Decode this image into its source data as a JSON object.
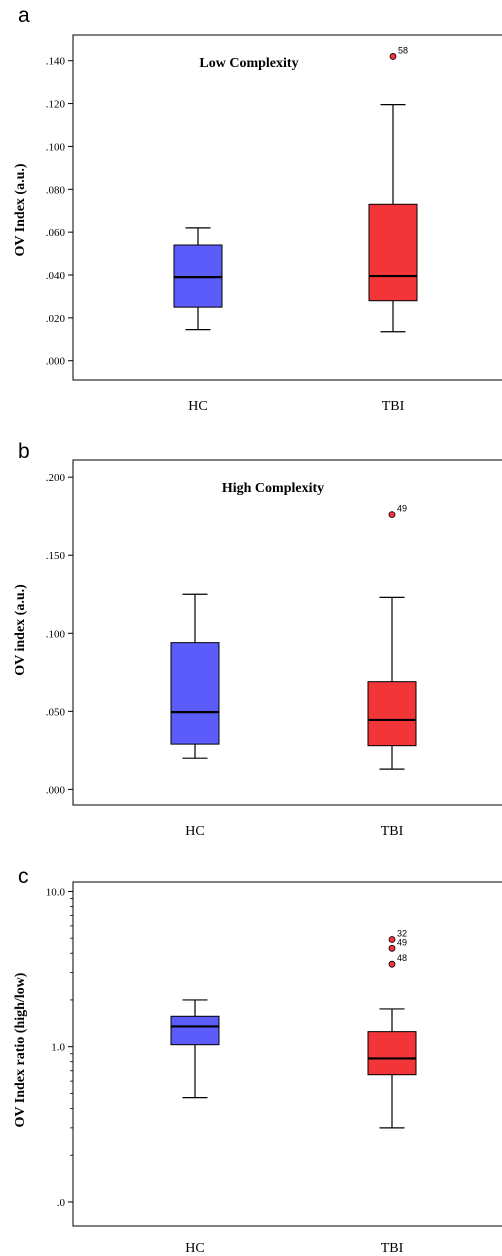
{
  "chart_data": [
    {
      "panel": "a",
      "type": "box",
      "title": "Low Complexity",
      "ylabel": "OV Index (a.u.)",
      "scale": "linear",
      "ylim": [
        -0.009,
        0.152
      ],
      "yticks": [
        0.0,
        0.02,
        0.04,
        0.06,
        0.08,
        0.1,
        0.12,
        0.14
      ],
      "ytick_labels": [
        ".000",
        ".020",
        ".040",
        ".060",
        ".080",
        ".100",
        ".120",
        ".140"
      ],
      "categories": [
        "HC",
        "TBI"
      ],
      "colors": [
        "#5b5cf9",
        "#f23538"
      ],
      "boxes": [
        {
          "category": "HC",
          "whisker_low": 0.0145,
          "q1": 0.025,
          "median": 0.039,
          "q3": 0.054,
          "whisker_high": 0.062,
          "outliers": []
        },
        {
          "category": "TBI",
          "whisker_low": 0.0135,
          "q1": 0.028,
          "median": 0.0395,
          "q3": 0.073,
          "whisker_high": 0.1195,
          "outliers": [
            {
              "value": 0.142,
              "label": "58"
            }
          ]
        }
      ]
    },
    {
      "panel": "b",
      "type": "box",
      "title": "High Complexity",
      "ylabel": "OV index (a.u.)",
      "scale": "linear",
      "ylim": [
        -0.01,
        0.211
      ],
      "yticks": [
        0.0,
        0.05,
        0.1,
        0.15,
        0.2
      ],
      "ytick_labels": [
        ".000",
        ".050",
        ".100",
        ".150",
        ".200"
      ],
      "categories": [
        "HC",
        "TBI"
      ],
      "colors": [
        "#5b5cf9",
        "#f23538"
      ],
      "boxes": [
        {
          "category": "HC",
          "whisker_low": 0.02,
          "q1": 0.029,
          "median": 0.0495,
          "q3": 0.094,
          "whisker_high": 0.125,
          "outliers": []
        },
        {
          "category": "TBI",
          "whisker_low": 0.013,
          "q1": 0.028,
          "median": 0.0445,
          "q3": 0.069,
          "whisker_high": 0.123,
          "outliers": [
            {
              "value": 0.176,
              "label": "49"
            }
          ]
        }
      ]
    },
    {
      "panel": "c",
      "type": "box",
      "title": "",
      "ylabel": "OV Index ratio (high/low)",
      "scale": "log",
      "ylim": [
        0.07,
        11.5
      ],
      "yticks": [
        0.1,
        1.0,
        10.0
      ],
      "ytick_labels": [
        ".0",
        "1.0",
        "10.0"
      ],
      "minor_ticks": [
        0.2,
        0.3,
        0.4,
        0.5,
        0.6,
        0.7,
        0.8,
        0.9,
        2,
        3,
        4,
        5,
        6,
        7,
        8,
        9
      ],
      "categories": [
        "HC",
        "TBI"
      ],
      "colors": [
        "#5b5cf9",
        "#f23538"
      ],
      "boxes": [
        {
          "category": "HC",
          "whisker_low": 0.47,
          "q1": 1.03,
          "median": 1.35,
          "q3": 1.57,
          "whisker_high": 2.0,
          "outliers": []
        },
        {
          "category": "TBI",
          "whisker_low": 0.3,
          "q1": 0.66,
          "median": 0.84,
          "q3": 1.25,
          "whisker_high": 1.75,
          "outliers": [
            {
              "value": 4.9,
              "label": "32"
            },
            {
              "value": 4.3,
              "label": "49"
            },
            {
              "value": 3.4,
              "label": "48"
            }
          ]
        }
      ]
    }
  ]
}
